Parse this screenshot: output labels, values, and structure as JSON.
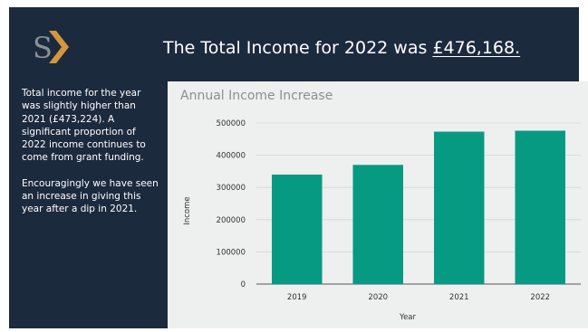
{
  "logo": {
    "icon": "s-plus-logo",
    "accent": "#e8a33d"
  },
  "header": {
    "headline_prefix": "The Total Income for 2022 was ",
    "headline_amount": "£476,168."
  },
  "sidebar": {
    "paragraph_1": "Total income for the year was slightly higher than 2021 (£473,224). A significant proportion of 2022 income continues to come from grant funding.",
    "paragraph_2": "Encouragingly we have seen an increase in giving this year after a dip in 2021."
  },
  "colors": {
    "slide_bg": "#1c2a3e",
    "bar": "#079a82",
    "panel_bg": "#eeefef"
  },
  "chart_data": {
    "type": "bar",
    "title": "Annual Income Increase",
    "xlabel": "Year",
    "ylabel": "Income",
    "categories": [
      "2019",
      "2020",
      "2021",
      "2022"
    ],
    "values": [
      340000,
      370000,
      473224,
      476168
    ],
    "ylim": [
      0,
      500000
    ],
    "yticks": [
      0,
      100000,
      200000,
      300000,
      400000,
      500000
    ],
    "ytick_labels": [
      "0",
      "100000",
      "200000",
      "300000",
      "400000",
      "500000"
    ],
    "grid": true,
    "legend": "none"
  }
}
